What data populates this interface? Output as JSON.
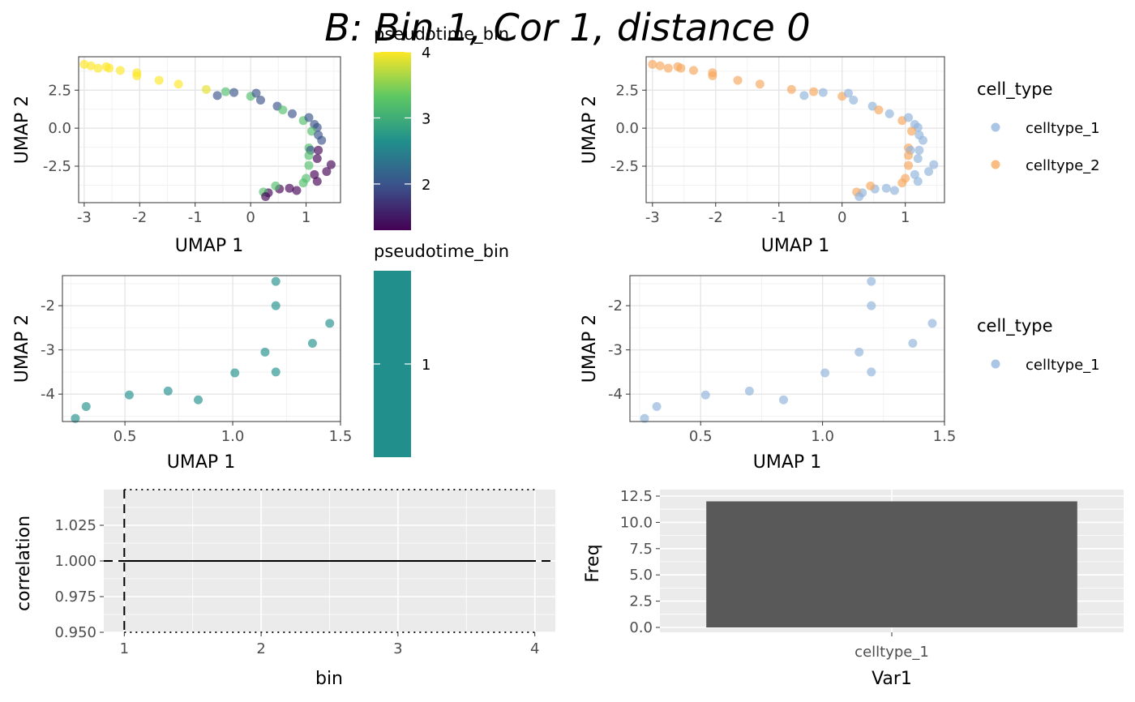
{
  "title": "B: Bin 1, Cor 1, distance 0",
  "colors": {
    "celltype_1": "#8fb2dc",
    "celltype_2": "#f7a65a",
    "viridis": [
      "#440154",
      "#3b528b",
      "#21908c",
      "#5dc863",
      "#fde725"
    ],
    "bin1_point": "#21908c",
    "bar_fill": "#595959",
    "panel_grey": "#ebebeb"
  },
  "chart_data": [
    {
      "id": "umap_all_pseudotime",
      "type": "scatter",
      "xlabel": "UMAP 1",
      "ylabel": "UMAP 2",
      "xlim": [
        -3.1,
        1.62
      ],
      "ylim": [
        -4.9,
        4.7
      ],
      "xticks": [
        -3,
        -2,
        -1,
        0,
        1
      ],
      "yticks": [
        -2.5,
        0.0,
        2.5
      ],
      "ytick_labels": [
        "-2.5",
        "0.0",
        "2.5"
      ],
      "grid": true,
      "color_by": "pseudotime_bin",
      "points": [
        {
          "x": -3.0,
          "y": 4.2,
          "bin": 4
        },
        {
          "x": -2.88,
          "y": 4.1,
          "bin": 4
        },
        {
          "x": -2.75,
          "y": 3.95,
          "bin": 4
        },
        {
          "x": -2.6,
          "y": 4.05,
          "bin": 4
        },
        {
          "x": -2.55,
          "y": 3.95,
          "bin": 4
        },
        {
          "x": -2.35,
          "y": 3.8,
          "bin": 4
        },
        {
          "x": -2.05,
          "y": 3.65,
          "bin": 4
        },
        {
          "x": -2.05,
          "y": 3.45,
          "bin": 4
        },
        {
          "x": -1.65,
          "y": 3.15,
          "bin": 4
        },
        {
          "x": -1.3,
          "y": 2.9,
          "bin": 4
        },
        {
          "x": -0.8,
          "y": 2.55,
          "bin": 3.9
        },
        {
          "x": -0.6,
          "y": 2.15,
          "bin": 2
        },
        {
          "x": -0.45,
          "y": 2.4,
          "bin": 3.2
        },
        {
          "x": -0.3,
          "y": 2.35,
          "bin": 2
        },
        {
          "x": 0.0,
          "y": 2.1,
          "bin": 3.2
        },
        {
          "x": 0.1,
          "y": 2.3,
          "bin": 2
        },
        {
          "x": 0.18,
          "y": 1.85,
          "bin": 2
        },
        {
          "x": 0.48,
          "y": 1.45,
          "bin": 2
        },
        {
          "x": 0.58,
          "y": 1.2,
          "bin": 3.2
        },
        {
          "x": 0.75,
          "y": 0.95,
          "bin": 2
        },
        {
          "x": 0.95,
          "y": 0.5,
          "bin": 3.2
        },
        {
          "x": 1.05,
          "y": 0.7,
          "bin": 2
        },
        {
          "x": 1.15,
          "y": 0.25,
          "bin": 2
        },
        {
          "x": 1.2,
          "y": 0.05,
          "bin": 2
        },
        {
          "x": 1.1,
          "y": -0.2,
          "bin": 3.2
        },
        {
          "x": 1.22,
          "y": -0.45,
          "bin": 2
        },
        {
          "x": 1.28,
          "y": -0.8,
          "bin": 2
        },
        {
          "x": 1.05,
          "y": -1.3,
          "bin": 3.2
        },
        {
          "x": 1.08,
          "y": -1.45,
          "bin": 2
        },
        {
          "x": 1.22,
          "y": -1.45,
          "bin": 1
        },
        {
          "x": 1.05,
          "y": -1.8,
          "bin": 3.2
        },
        {
          "x": 1.2,
          "y": -2.0,
          "bin": 1
        },
        {
          "x": 1.05,
          "y": -2.45,
          "bin": 3.2
        },
        {
          "x": 1.45,
          "y": -2.4,
          "bin": 1
        },
        {
          "x": 1.37,
          "y": -2.85,
          "bin": 1
        },
        {
          "x": 1.15,
          "y": -3.05,
          "bin": 1
        },
        {
          "x": 1.0,
          "y": -3.3,
          "bin": 3.2
        },
        {
          "x": 1.2,
          "y": -3.5,
          "bin": 1
        },
        {
          "x": 0.95,
          "y": -3.6,
          "bin": 3.2
        },
        {
          "x": 0.83,
          "y": -4.1,
          "bin": 1
        },
        {
          "x": 0.7,
          "y": -3.95,
          "bin": 1
        },
        {
          "x": 0.52,
          "y": -4.0,
          "bin": 1
        },
        {
          "x": 0.45,
          "y": -3.8,
          "bin": 3.2
        },
        {
          "x": 0.32,
          "y": -4.25,
          "bin": 1
        },
        {
          "x": 0.23,
          "y": -4.2,
          "bin": 3.2
        },
        {
          "x": 0.27,
          "y": -4.5,
          "bin": 1
        }
      ]
    },
    {
      "id": "umap_all_celltype",
      "type": "scatter",
      "xlabel": "UMAP 1",
      "ylabel": "UMAP 2",
      "xlim": [
        -3.1,
        1.62
      ],
      "ylim": [
        -4.9,
        4.7
      ],
      "xticks": [
        -3,
        -2,
        -1,
        0,
        1
      ],
      "yticks": [
        -2.5,
        0.0,
        2.5
      ],
      "ytick_labels": [
        "-2.5",
        "0.0",
        "2.5"
      ],
      "grid": true,
      "color_by": "cell_type",
      "points": [
        {
          "x": -3.0,
          "y": 4.2,
          "t": "celltype_2"
        },
        {
          "x": -2.88,
          "y": 4.1,
          "t": "celltype_2"
        },
        {
          "x": -2.75,
          "y": 3.95,
          "t": "celltype_2"
        },
        {
          "x": -2.6,
          "y": 4.05,
          "t": "celltype_2"
        },
        {
          "x": -2.55,
          "y": 3.95,
          "t": "celltype_2"
        },
        {
          "x": -2.35,
          "y": 3.8,
          "t": "celltype_2"
        },
        {
          "x": -2.05,
          "y": 3.65,
          "t": "celltype_2"
        },
        {
          "x": -2.05,
          "y": 3.45,
          "t": "celltype_2"
        },
        {
          "x": -1.65,
          "y": 3.15,
          "t": "celltype_2"
        },
        {
          "x": -1.3,
          "y": 2.9,
          "t": "celltype_2"
        },
        {
          "x": -0.8,
          "y": 2.55,
          "t": "celltype_2"
        },
        {
          "x": -0.6,
          "y": 2.15,
          "t": "celltype_1"
        },
        {
          "x": -0.45,
          "y": 2.4,
          "t": "celltype_2"
        },
        {
          "x": -0.3,
          "y": 2.35,
          "t": "celltype_1"
        },
        {
          "x": 0.0,
          "y": 2.1,
          "t": "celltype_2"
        },
        {
          "x": 0.1,
          "y": 2.3,
          "t": "celltype_1"
        },
        {
          "x": 0.18,
          "y": 1.85,
          "t": "celltype_1"
        },
        {
          "x": 0.48,
          "y": 1.45,
          "t": "celltype_1"
        },
        {
          "x": 0.58,
          "y": 1.2,
          "t": "celltype_2"
        },
        {
          "x": 0.75,
          "y": 0.95,
          "t": "celltype_1"
        },
        {
          "x": 0.95,
          "y": 0.5,
          "t": "celltype_2"
        },
        {
          "x": 1.05,
          "y": 0.7,
          "t": "celltype_1"
        },
        {
          "x": 1.15,
          "y": 0.25,
          "t": "celltype_1"
        },
        {
          "x": 1.2,
          "y": 0.05,
          "t": "celltype_1"
        },
        {
          "x": 1.1,
          "y": -0.2,
          "t": "celltype_2"
        },
        {
          "x": 1.22,
          "y": -0.45,
          "t": "celltype_1"
        },
        {
          "x": 1.28,
          "y": -0.8,
          "t": "celltype_1"
        },
        {
          "x": 1.05,
          "y": -1.3,
          "t": "celltype_2"
        },
        {
          "x": 1.08,
          "y": -1.45,
          "t": "celltype_1"
        },
        {
          "x": 1.22,
          "y": -1.45,
          "t": "celltype_1"
        },
        {
          "x": 1.05,
          "y": -1.8,
          "t": "celltype_2"
        },
        {
          "x": 1.2,
          "y": -2.0,
          "t": "celltype_1"
        },
        {
          "x": 1.05,
          "y": -2.45,
          "t": "celltype_2"
        },
        {
          "x": 1.45,
          "y": -2.4,
          "t": "celltype_1"
        },
        {
          "x": 1.37,
          "y": -2.85,
          "t": "celltype_1"
        },
        {
          "x": 1.15,
          "y": -3.05,
          "t": "celltype_1"
        },
        {
          "x": 1.0,
          "y": -3.3,
          "t": "celltype_2"
        },
        {
          "x": 1.2,
          "y": -3.5,
          "t": "celltype_1"
        },
        {
          "x": 0.95,
          "y": -3.6,
          "t": "celltype_2"
        },
        {
          "x": 0.83,
          "y": -4.1,
          "t": "celltype_1"
        },
        {
          "x": 0.7,
          "y": -3.95,
          "t": "celltype_1"
        },
        {
          "x": 0.52,
          "y": -4.0,
          "t": "celltype_1"
        },
        {
          "x": 0.45,
          "y": -3.8,
          "t": "celltype_2"
        },
        {
          "x": 0.32,
          "y": -4.25,
          "t": "celltype_1"
        },
        {
          "x": 0.23,
          "y": -4.2,
          "t": "celltype_2"
        },
        {
          "x": 0.27,
          "y": -4.5,
          "t": "celltype_1"
        }
      ]
    },
    {
      "id": "umap_bin1_pseudotime",
      "type": "scatter",
      "xlabel": "UMAP 1",
      "ylabel": "UMAP 2",
      "xlim": [
        0.21,
        1.5
      ],
      "ylim": [
        -4.62,
        -1.32
      ],
      "xticks": [
        0.5,
        1.0,
        1.5
      ],
      "xtick_labels": [
        "0.5",
        "1.0",
        "1.5"
      ],
      "yticks": [
        -4,
        -3,
        -2
      ],
      "grid": true,
      "color_by": "pseudotime_bin",
      "points": [
        {
          "x": 1.2,
          "y": -1.45
        },
        {
          "x": 1.2,
          "y": -2.0
        },
        {
          "x": 1.45,
          "y": -2.4
        },
        {
          "x": 1.37,
          "y": -2.85
        },
        {
          "x": 1.15,
          "y": -3.05
        },
        {
          "x": 1.2,
          "y": -3.5
        },
        {
          "x": 1.01,
          "y": -3.52
        },
        {
          "x": 0.7,
          "y": -3.93
        },
        {
          "x": 0.52,
          "y": -4.02
        },
        {
          "x": 0.84,
          "y": -4.13
        },
        {
          "x": 0.32,
          "y": -4.28
        },
        {
          "x": 0.27,
          "y": -4.55
        }
      ]
    },
    {
      "id": "umap_bin1_celltype",
      "type": "scatter",
      "xlabel": "UMAP 1",
      "ylabel": "UMAP 2",
      "xlim": [
        0.21,
        1.5
      ],
      "ylim": [
        -4.62,
        -1.32
      ],
      "xticks": [
        0.5,
        1.0,
        1.5
      ],
      "xtick_labels": [
        "0.5",
        "1.0",
        "1.5"
      ],
      "yticks": [
        -4,
        -3,
        -2
      ],
      "grid": true,
      "color_by": "cell_type",
      "points": [
        {
          "x": 1.2,
          "y": -1.45
        },
        {
          "x": 1.2,
          "y": -2.0
        },
        {
          "x": 1.45,
          "y": -2.4
        },
        {
          "x": 1.37,
          "y": -2.85
        },
        {
          "x": 1.15,
          "y": -3.05
        },
        {
          "x": 1.2,
          "y": -3.5
        },
        {
          "x": 1.01,
          "y": -3.52
        },
        {
          "x": 0.7,
          "y": -3.93
        },
        {
          "x": 0.52,
          "y": -4.02
        },
        {
          "x": 0.84,
          "y": -4.13
        },
        {
          "x": 0.32,
          "y": -4.28
        },
        {
          "x": 0.27,
          "y": -4.55
        }
      ]
    },
    {
      "id": "correlation_by_bin",
      "type": "line",
      "xlabel": "bin",
      "ylabel": "correlation",
      "x": [
        1,
        2,
        3,
        4
      ],
      "y": [
        1.0,
        1.0,
        1.0,
        1.0
      ],
      "xlim": [
        0.85,
        4.15
      ],
      "ylim": [
        0.95,
        1.05
      ],
      "xticks": [
        1,
        2,
        3,
        4
      ],
      "yticks": [
        0.95,
        0.975,
        1.0,
        1.025
      ],
      "ytick_labels": [
        "0.950",
        "0.975",
        "1.000",
        "1.025"
      ],
      "reference_lines": {
        "dashed_hline": 1.0,
        "dashed_vline": 1,
        "dotted_hlines": [
          0.95,
          1.05
        ]
      },
      "grid": true
    },
    {
      "id": "celltype_frequency",
      "type": "bar",
      "xlabel": "Var1",
      "ylabel": "Freq",
      "categories": [
        "celltype_1"
      ],
      "values": [
        12
      ],
      "ylim": [
        0,
        12.5
      ],
      "yticks": [
        0.0,
        2.5,
        5.0,
        7.5,
        10.0,
        12.5
      ],
      "ytick_labels": [
        "0.0",
        "2.5",
        "5.0",
        "7.5",
        "10.0",
        "12.5"
      ],
      "grid": true
    }
  ],
  "legends": {
    "top_colorbar": {
      "title": "pseudotime_bin",
      "labels": [
        "2",
        "3",
        "4"
      ],
      "values": [
        2,
        3,
        4
      ],
      "range": [
        1.3,
        4
      ]
    },
    "middle_colorbar": {
      "title": "pseudotime_bin",
      "labels": [
        "1"
      ],
      "values": [
        1
      ]
    },
    "top_celltype": {
      "title": "cell_type",
      "labels": [
        "celltype_1",
        "celltype_2"
      ]
    },
    "middle_celltype": {
      "title": "cell_type",
      "labels": [
        "celltype_1"
      ]
    }
  }
}
